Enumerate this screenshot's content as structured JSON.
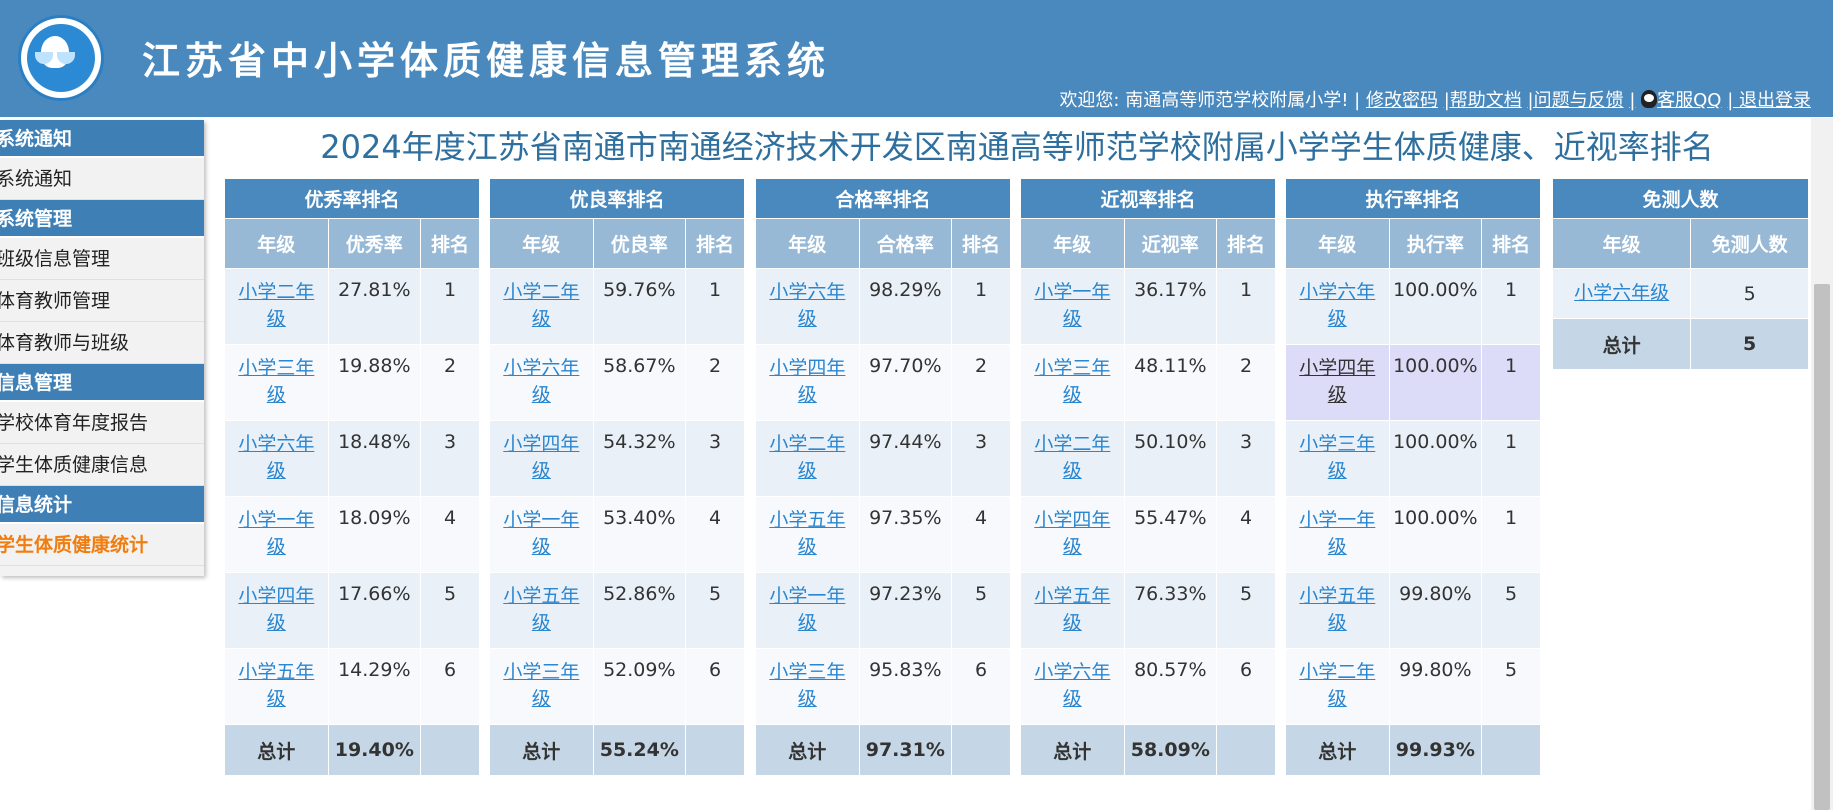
{
  "header": {
    "system_title": "江苏省中小学体质健康信息管理系统",
    "welcome": "欢迎您: 南通高等师范学校附属小学! | ",
    "links": [
      "修改密码",
      "|帮助文档",
      "|问题与反馈",
      "|",
      "客服QQ",
      "| 退出登录"
    ]
  },
  "sidebar": {
    "sections": [
      {
        "title": "系统通知",
        "items": [
          {
            "label": "系统通知"
          }
        ]
      },
      {
        "title": "系统管理",
        "items": [
          {
            "label": "班级信息管理"
          },
          {
            "label": "体育教师管理"
          },
          {
            "label": "体育教师与班级"
          }
        ]
      },
      {
        "title": "信息管理",
        "items": [
          {
            "label": "学校体育年度报告"
          },
          {
            "label": "学生体质健康信息"
          }
        ]
      },
      {
        "title": "信息统计",
        "items": [
          {
            "label": "学生体质健康统计",
            "active": true
          }
        ]
      }
    ]
  },
  "main": {
    "title": "2024年度江苏省南通市南通经济技术开发区南通高等师范学校附属小学学生体质健康、近视率排名",
    "col_grade": "年级",
    "col_rank": "排名",
    "total_label": "总计",
    "tables": [
      {
        "title": "优秀率排名",
        "rate_header": "优秀率",
        "total": "19.40%",
        "rows": [
          [
            "小学二年级",
            "27.81%",
            "1"
          ],
          [
            "小学三年级",
            "19.88%",
            "2"
          ],
          [
            "小学六年级",
            "18.48%",
            "3"
          ],
          [
            "小学一年级",
            "18.09%",
            "4"
          ],
          [
            "小学四年级",
            "17.66%",
            "5"
          ],
          [
            "小学五年级",
            "14.29%",
            "6"
          ]
        ]
      },
      {
        "title": "优良率排名",
        "rate_header": "优良率",
        "total": "55.24%",
        "rows": [
          [
            "小学二年级",
            "59.76%",
            "1"
          ],
          [
            "小学六年级",
            "58.67%",
            "2"
          ],
          [
            "小学四年级",
            "54.32%",
            "3"
          ],
          [
            "小学一年级",
            "53.40%",
            "4"
          ],
          [
            "小学五年级",
            "52.86%",
            "5"
          ],
          [
            "小学三年级",
            "52.09%",
            "6"
          ]
        ]
      },
      {
        "title": "合格率排名",
        "rate_header": "合格率",
        "total": "97.31%",
        "rows": [
          [
            "小学六年级",
            "98.29%",
            "1"
          ],
          [
            "小学四年级",
            "97.70%",
            "2"
          ],
          [
            "小学二年级",
            "97.44%",
            "3"
          ],
          [
            "小学五年级",
            "97.35%",
            "4"
          ],
          [
            "小学一年级",
            "97.23%",
            "5"
          ],
          [
            "小学三年级",
            "95.83%",
            "6"
          ]
        ]
      },
      {
        "title": "近视率排名",
        "rate_header": "近视率",
        "total": "58.09%",
        "rows": [
          [
            "小学一年级",
            "36.17%",
            "1"
          ],
          [
            "小学三年级",
            "48.11%",
            "2"
          ],
          [
            "小学二年级",
            "50.10%",
            "3"
          ],
          [
            "小学四年级",
            "55.47%",
            "4"
          ],
          [
            "小学五年级",
            "76.33%",
            "5"
          ],
          [
            "小学六年级",
            "80.57%",
            "6"
          ]
        ]
      },
      {
        "title": "执行率排名",
        "rate_header": "执行率",
        "total": "99.93%",
        "rows": [
          [
            "小学六年级",
            "100.00%",
            "1"
          ],
          [
            "小学四年级",
            "100.00%",
            "1"
          ],
          [
            "小学三年级",
            "100.00%",
            "1"
          ],
          [
            "小学一年级",
            "100.00%",
            "1"
          ],
          [
            "小学五年级",
            "99.80%",
            "5"
          ],
          [
            "小学二年级",
            "99.80%",
            "5"
          ]
        ]
      }
    ],
    "exempt": {
      "title": "免测人数",
      "count_header": "免测人数",
      "rows": [
        [
          "小学六年级",
          "5"
        ]
      ],
      "total": "5"
    }
  }
}
